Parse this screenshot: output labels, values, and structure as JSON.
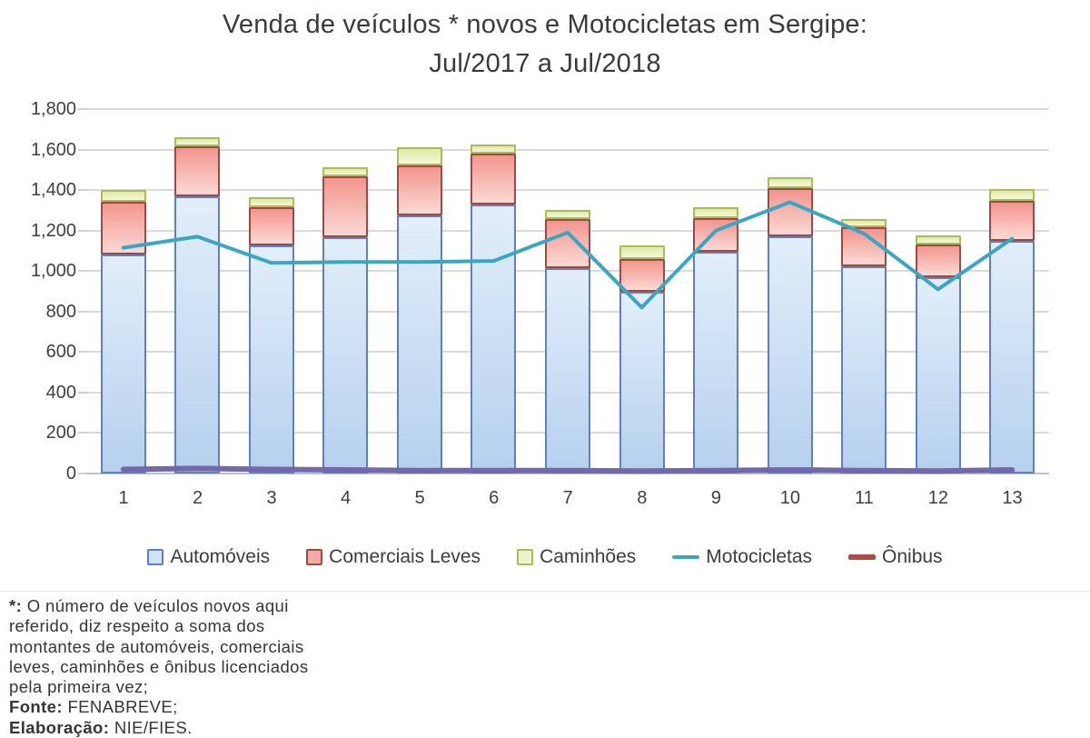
{
  "title": {
    "line1": "Venda de veículos * novos e Motocicletas em Sergipe:",
    "line2": "Jul/2017 a Jul/2018"
  },
  "chart_data": {
    "type": "bar",
    "subtype": "stacked-bars-with-lines",
    "categories": [
      "1",
      "2",
      "3",
      "4",
      "5",
      "6",
      "7",
      "8",
      "9",
      "10",
      "11",
      "12",
      "13"
    ],
    "series": [
      {
        "name": "Automóveis",
        "type": "bar",
        "values": [
          1080,
          1370,
          1125,
          1165,
          1275,
          1330,
          1015,
          900,
          1095,
          1170,
          1025,
          970,
          1150
        ],
        "fill_top": "#e2eefa",
        "fill_bottom": "#b5d0ee",
        "border": "#5f7fbe",
        "legend_fill": "#cfe3f7"
      },
      {
        "name": "Comerciais Leves",
        "type": "bar",
        "values": [
          260,
          245,
          190,
          305,
          245,
          250,
          240,
          160,
          165,
          240,
          190,
          160,
          195
        ],
        "fill_top": "#f2958e",
        "fill_bottom": "#fbd9d4",
        "border": "#9c4a47",
        "legend_fill": "#f5aba4"
      },
      {
        "name": "Caminhões",
        "type": "bar",
        "values": [
          60,
          45,
          50,
          45,
          90,
          45,
          45,
          65,
          55,
          55,
          40,
          45,
          60
        ],
        "fill_top": "#e0eaa6",
        "fill_bottom": "#f3f7db",
        "border": "#adba58",
        "legend_fill": "#edf3cd"
      },
      {
        "name": "Motocicletas",
        "type": "line",
        "values": [
          1115,
          1170,
          1040,
          1045,
          1045,
          1050,
          1190,
          820,
          1200,
          1340,
          1185,
          910,
          1160
        ],
        "color": "#3aa6c2"
      },
      {
        "name": "Ônibus",
        "type": "line",
        "values": [
          20,
          25,
          20,
          18,
          15,
          15,
          15,
          12,
          15,
          18,
          15,
          12,
          18
        ],
        "color": "#b04a45",
        "plot_color": "#7568a9"
      }
    ],
    "ylim": [
      0,
      1800
    ],
    "ytick_step": 200,
    "grid": true,
    "legend_position": "bottom",
    "xlabel": "",
    "ylabel": ""
  },
  "footnote": {
    "lines": [
      {
        "bold": "*: ",
        "rest": "O número de veículos novos aqui"
      },
      {
        "bold": "",
        "rest": "referido, diz respeito a soma dos"
      },
      {
        "bold": "",
        "rest": "montantes de automóveis, comerciais"
      },
      {
        "bold": "",
        "rest": "leves, caminhões e ônibus licenciados"
      },
      {
        "bold": "",
        "rest": "pela primeira vez;"
      },
      {
        "bold": "Fonte:",
        "rest": " FENABREVE;"
      },
      {
        "bold": "Elaboração:",
        "rest": " NIE/FIES."
      }
    ]
  }
}
